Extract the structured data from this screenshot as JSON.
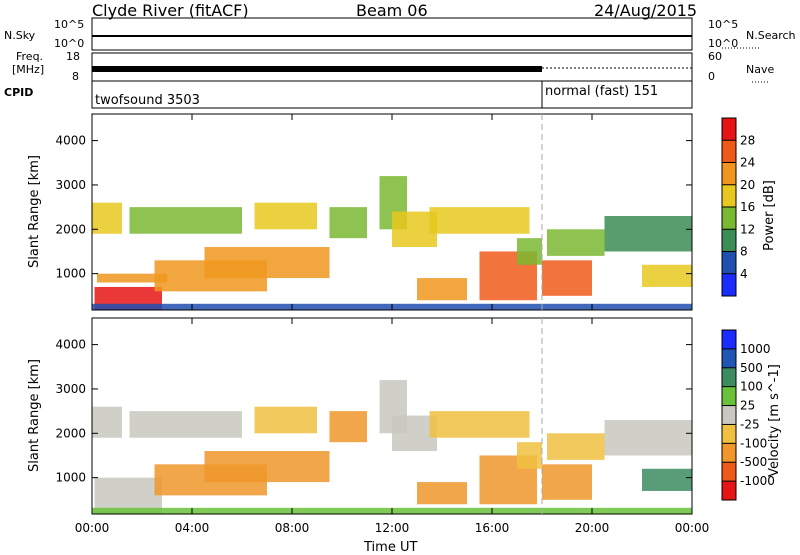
{
  "header": {
    "station": "Clyde River (fitACF)",
    "beam": "Beam 06",
    "date": "24/Aug/2015"
  },
  "top_panels": {
    "nsky_label": "N.Sky",
    "nsky_ticks": [
      "10^5",
      "10^0"
    ],
    "nsearch_label": "N.Search",
    "nsearch_ticks": [
      "10^5",
      "10^0"
    ],
    "freq_label_1": "Freq.",
    "freq_label_2": "[MHz]",
    "freq_ticks": [
      "18",
      "8"
    ],
    "nave_label": "Nave",
    "nave_ticks": [
      "60",
      "0"
    ],
    "cpid_label": "CPID",
    "cpid_segments": [
      {
        "name": "twofsound 3503",
        "start_hour": 0,
        "end_hour": 18
      },
      {
        "name": "normal (fast) 151",
        "start_hour": 18,
        "end_hour": 24
      }
    ]
  },
  "axes": {
    "xlabel": "Time UT",
    "x_ticks": [
      "00:00",
      "04:00",
      "08:00",
      "12:00",
      "16:00",
      "20:00",
      "00:00"
    ],
    "x_tick_hours": [
      0,
      4,
      8,
      12,
      16,
      20,
      24
    ],
    "ylabel": "Slant Range [km]",
    "y_ticks": [
      "1000",
      "2000",
      "3000",
      "4000"
    ],
    "y_tick_values": [
      1000,
      2000,
      3000,
      4000
    ],
    "ylim": [
      180,
      4600
    ],
    "xlim": [
      0,
      24
    ]
  },
  "chart_data": [
    {
      "type": "heatmap",
      "panel": "power",
      "colorbar_label": "Power [dB]",
      "colorbar_ticks": [
        "4",
        "8",
        "12",
        "16",
        "20",
        "24",
        "28"
      ],
      "colorbar_tick_values": [
        4,
        8,
        12,
        16,
        20,
        24,
        28
      ],
      "colorbar_range": [
        0,
        32
      ],
      "colors": [
        "#1a2cff",
        "#1f4fb0",
        "#3c8c55",
        "#7ab832",
        "#e8c81e",
        "#f0961e",
        "#f05a19",
        "#e61414"
      ],
      "regions": [
        {
          "start_hour": 0.1,
          "end_hour": 2.8,
          "range_low": 180,
          "range_high": 700,
          "level": 28
        },
        {
          "start_hour": 0.2,
          "end_hour": 3.0,
          "range_low": 800,
          "range_high": 1000,
          "level": 22
        },
        {
          "start_hour": 0.0,
          "end_hour": 1.2,
          "range_low": 1900,
          "range_high": 2600,
          "level": 16
        },
        {
          "start_hour": 2.5,
          "end_hour": 7.0,
          "range_low": 600,
          "range_high": 1300,
          "level": 22
        },
        {
          "start_hour": 4.5,
          "end_hour": 9.5,
          "range_low": 900,
          "range_high": 1600,
          "level": 20
        },
        {
          "start_hour": 1.5,
          "end_hour": 6.0,
          "range_low": 1900,
          "range_high": 2500,
          "level": 14
        },
        {
          "start_hour": 6.5,
          "end_hour": 9.0,
          "range_low": 2000,
          "range_high": 2600,
          "level": 18
        },
        {
          "start_hour": 9.5,
          "end_hour": 11.0,
          "range_low": 1800,
          "range_high": 2500,
          "level": 14
        },
        {
          "start_hour": 11.5,
          "end_hour": 12.6,
          "range_low": 2000,
          "range_high": 3200,
          "level": 12
        },
        {
          "start_hour": 12.0,
          "end_hour": 13.8,
          "range_low": 1600,
          "range_high": 2400,
          "level": 18
        },
        {
          "start_hour": 13.5,
          "end_hour": 17.5,
          "range_low": 1900,
          "range_high": 2500,
          "level": 16
        },
        {
          "start_hour": 13.0,
          "end_hour": 15.0,
          "range_low": 400,
          "range_high": 900,
          "level": 20
        },
        {
          "start_hour": 15.5,
          "end_hour": 17.8,
          "range_low": 400,
          "range_high": 1500,
          "level": 26
        },
        {
          "start_hour": 17.0,
          "end_hour": 18.0,
          "range_low": 1200,
          "range_high": 1800,
          "level": 14
        },
        {
          "start_hour": 18.0,
          "end_hour": 20.0,
          "range_low": 500,
          "range_high": 1300,
          "level": 24
        },
        {
          "start_hour": 18.2,
          "end_hour": 20.5,
          "range_low": 1400,
          "range_high": 2000,
          "level": 14
        },
        {
          "start_hour": 20.5,
          "end_hour": 24.0,
          "range_low": 1500,
          "range_high": 2300,
          "level": 10
        },
        {
          "start_hour": 22.0,
          "end_hour": 24.0,
          "range_low": 700,
          "range_high": 1200,
          "level": 18
        },
        {
          "start_hour": 0.0,
          "end_hour": 24.0,
          "range_low": 180,
          "range_high": 320,
          "level": 6
        }
      ]
    },
    {
      "type": "heatmap",
      "panel": "velocity",
      "colorbar_label": "Velocity [m s^-1]",
      "colorbar_ticks": [
        "1000",
        "500",
        "100",
        "25",
        "-25",
        "-100",
        "-500",
        "-1000"
      ],
      "colorbar_tick_values": [
        1000,
        500,
        100,
        25,
        -25,
        -100,
        -500,
        -1000
      ],
      "colors": [
        "#1a2cff",
        "#1f55b5",
        "#3c8c60",
        "#6ac23a",
        "#c8c8c0",
        "#f0c040",
        "#f0962a",
        "#f05a19",
        "#e61414"
      ],
      "regions": [
        {
          "start_hour": 0.1,
          "end_hour": 2.8,
          "range_low": 180,
          "range_high": 1000,
          "level": 0
        },
        {
          "start_hour": 0.0,
          "end_hour": 1.2,
          "range_low": 1900,
          "range_high": 2600,
          "level": 0
        },
        {
          "start_hour": 2.5,
          "end_hour": 7.0,
          "range_low": 600,
          "range_high": 1300,
          "level": -300
        },
        {
          "start_hour": 4.5,
          "end_hour": 9.5,
          "range_low": 900,
          "range_high": 1600,
          "level": -300
        },
        {
          "start_hour": 1.5,
          "end_hour": 6.0,
          "range_low": 1900,
          "range_high": 2500,
          "level": 0
        },
        {
          "start_hour": 6.5,
          "end_hour": 9.0,
          "range_low": 2000,
          "range_high": 2600,
          "level": -60
        },
        {
          "start_hour": 9.5,
          "end_hour": 11.0,
          "range_low": 1800,
          "range_high": 2500,
          "level": -150
        },
        {
          "start_hour": 11.5,
          "end_hour": 12.6,
          "range_low": 2000,
          "range_high": 3200,
          "level": 0
        },
        {
          "start_hour": 12.0,
          "end_hour": 13.8,
          "range_low": 1600,
          "range_high": 2400,
          "level": 0
        },
        {
          "start_hour": 13.5,
          "end_hour": 17.5,
          "range_low": 1900,
          "range_high": 2500,
          "level": -80
        },
        {
          "start_hour": 13.0,
          "end_hour": 15.0,
          "range_low": 400,
          "range_high": 900,
          "level": -200
        },
        {
          "start_hour": 15.5,
          "end_hour": 17.8,
          "range_low": 400,
          "range_high": 1500,
          "level": -400
        },
        {
          "start_hour": 17.0,
          "end_hour": 18.0,
          "range_low": 1200,
          "range_high": 1800,
          "level": -80
        },
        {
          "start_hour": 18.0,
          "end_hour": 20.0,
          "range_low": 500,
          "range_high": 1300,
          "level": -400
        },
        {
          "start_hour": 18.2,
          "end_hour": 20.5,
          "range_low": 1400,
          "range_high": 2000,
          "level": -60
        },
        {
          "start_hour": 20.5,
          "end_hour": 24.0,
          "range_low": 1500,
          "range_high": 2300,
          "level": 0
        },
        {
          "start_hour": 22.0,
          "end_hour": 24.0,
          "range_low": 700,
          "range_high": 1200,
          "level": 200
        },
        {
          "start_hour": 0.0,
          "end_hour": 24.0,
          "range_low": 180,
          "range_high": 320,
          "level": 60
        }
      ]
    }
  ]
}
